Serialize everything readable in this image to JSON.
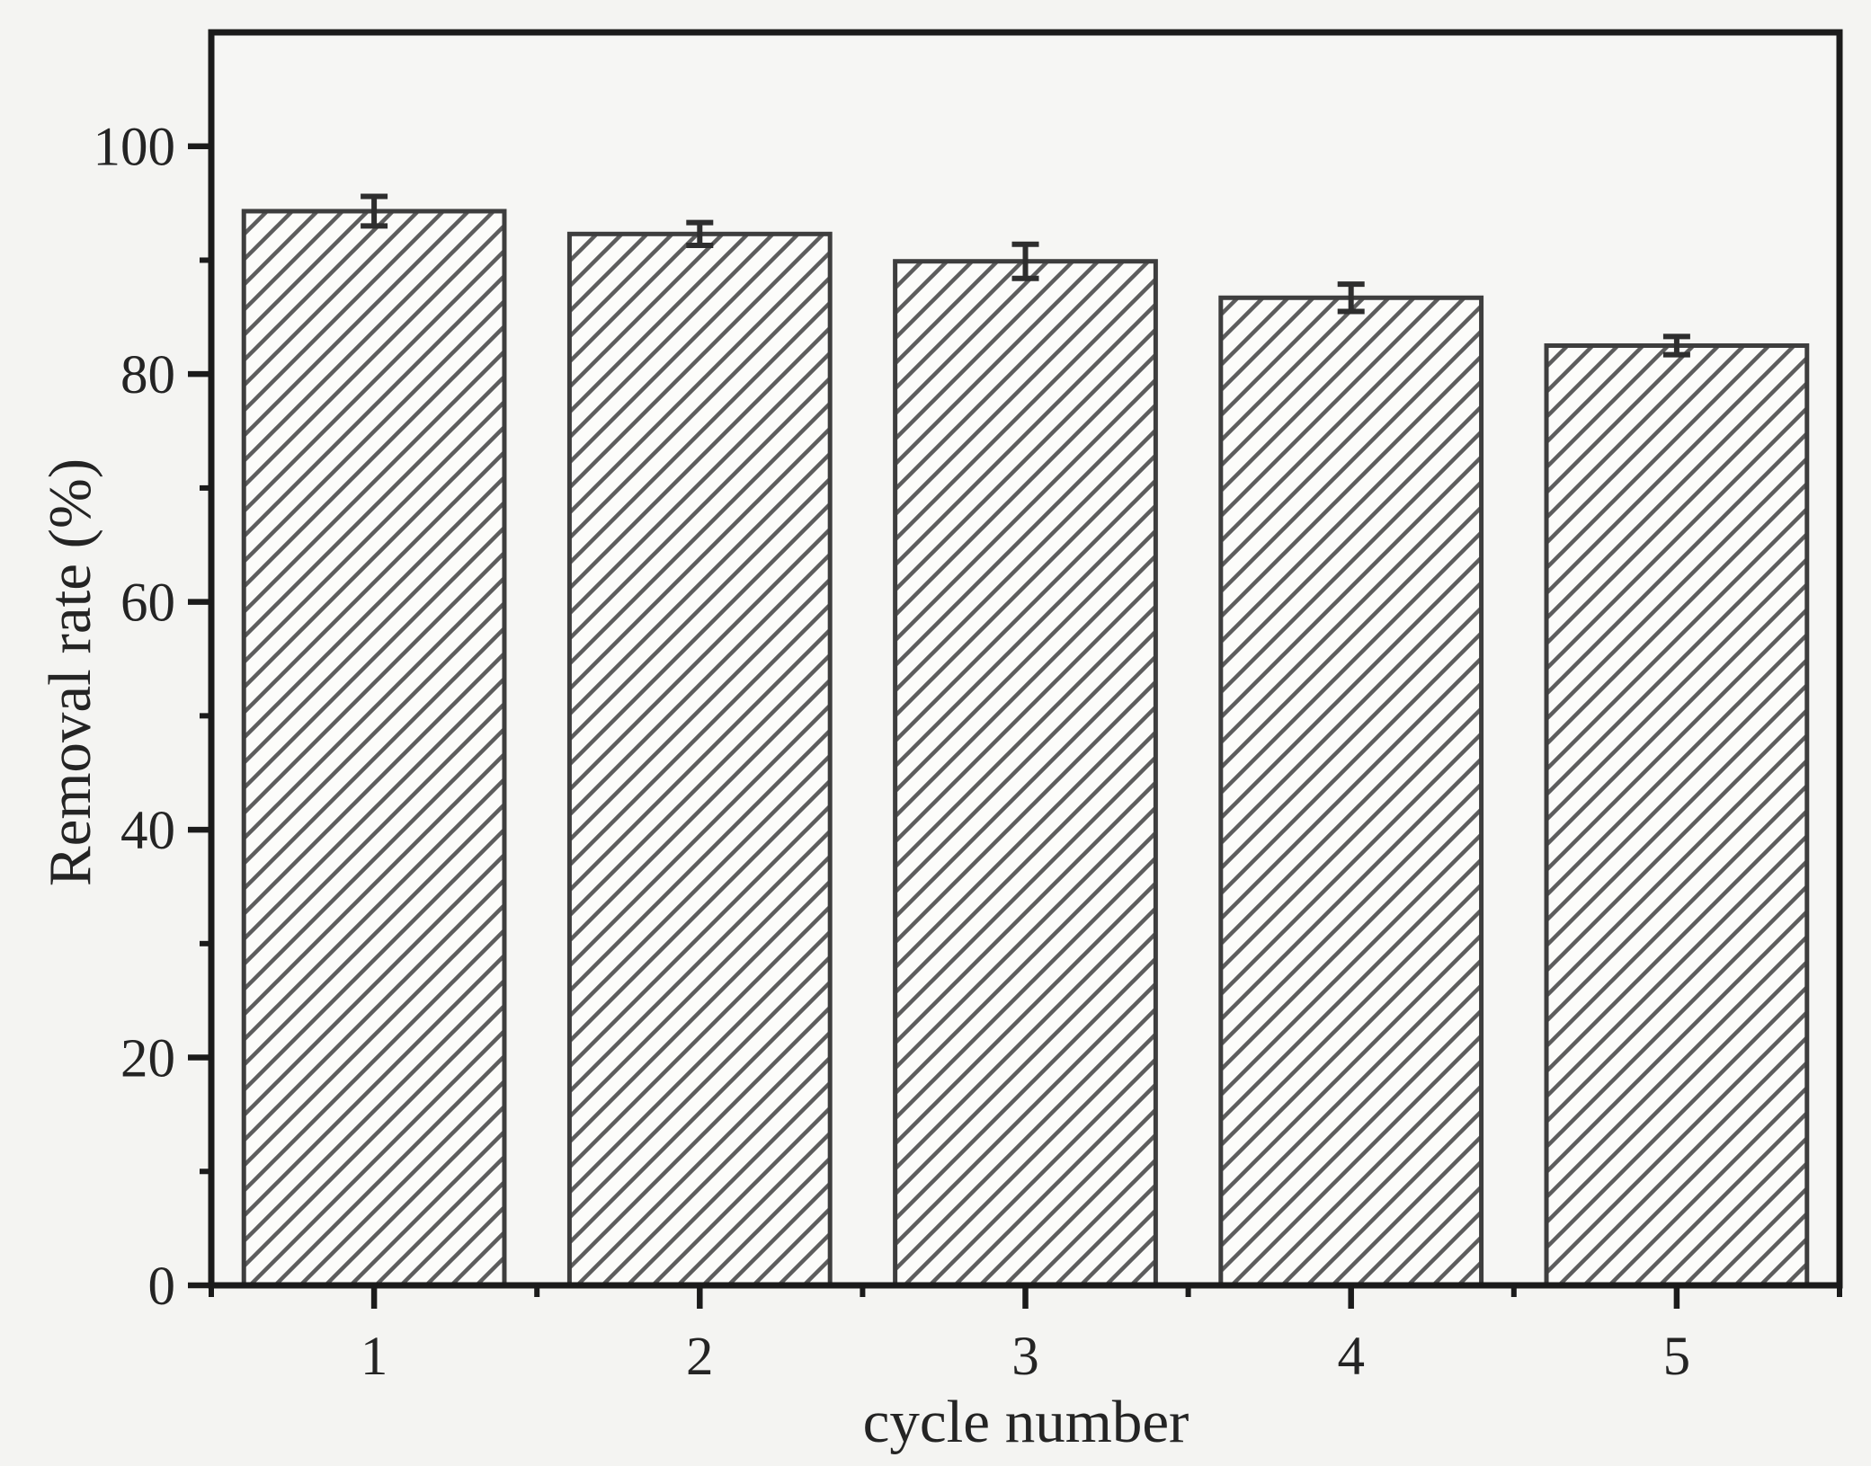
{
  "chart_data": {
    "type": "bar",
    "title": "",
    "xlabel": "cycle number",
    "ylabel": "Removal rate (%)",
    "categories": [
      "1",
      "2",
      "3",
      "4",
      "5"
    ],
    "values": [
      94.3,
      92.3,
      89.9,
      86.7,
      82.5
    ],
    "error_bars": [
      1.3,
      1.0,
      1.5,
      1.2,
      0.8
    ],
    "xlim": [
      0.5,
      5.5
    ],
    "ylim": [
      0,
      110
    ],
    "y_major_ticks": [
      0,
      20,
      40,
      60,
      80,
      100
    ],
    "y_minor_ticks": [
      10,
      30,
      50,
      70,
      90
    ],
    "x_minor_ticks": [
      0.5,
      1.5,
      2.5,
      3.5,
      4.5,
      5.5
    ],
    "bar_width_fraction": 0.8,
    "grid": false,
    "legend": "none",
    "bar_fill_style": "diagonal-hatch",
    "hatch_pattern": "/"
  },
  "colors": {
    "axis": "#1b1b1b",
    "text": "#242424",
    "bar_outline": "#3e3e3e",
    "bar_fill": "#fcfcfa",
    "hatch_line": "#5d5d5d",
    "error_bar": "#2e2e2e",
    "plot_background": "#f6f6f4",
    "page_background": "#f4f4f2"
  }
}
